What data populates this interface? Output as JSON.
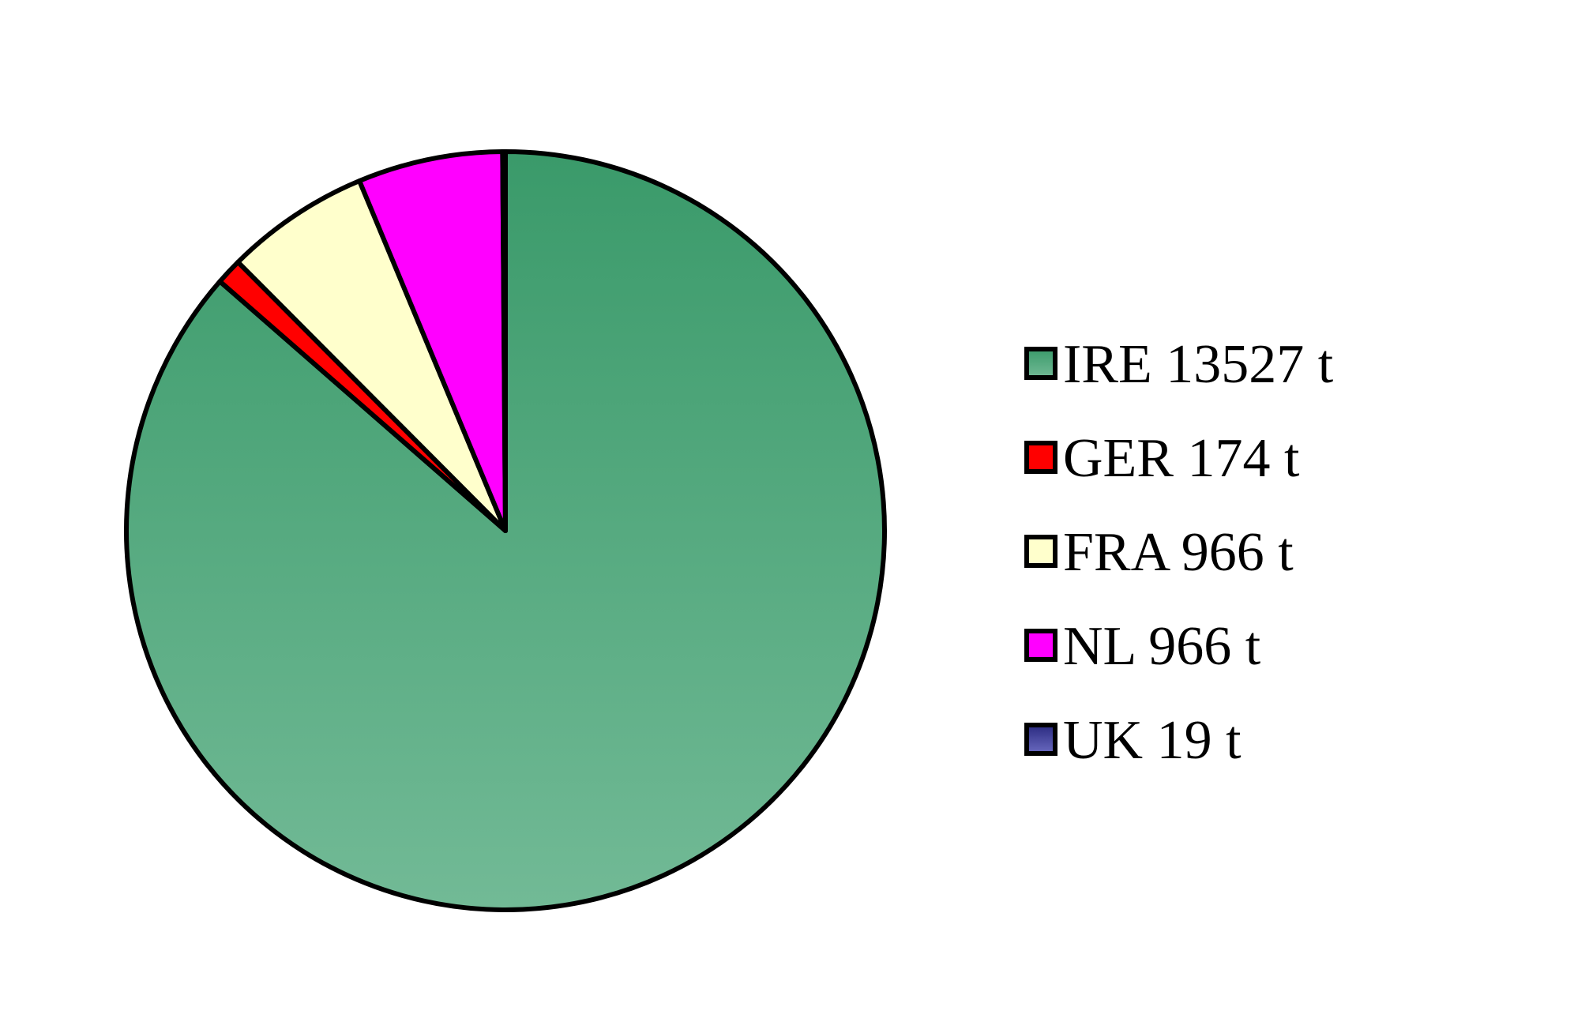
{
  "chart_data": {
    "type": "pie",
    "title": "",
    "legend_position": "right",
    "slices": [
      {
        "label": "IRE 13527 t",
        "value": 13527,
        "color": "#3a9a6a",
        "color_light": "#72ba96"
      },
      {
        "label": "GER 174 t",
        "value": 174,
        "color": "#ff0000",
        "color_light": "#ff0000"
      },
      {
        "label": "FRA 966 t",
        "value": 966,
        "color": "#ffffcc",
        "color_light": "#ffffcc"
      },
      {
        "label": "NL 966 t",
        "value": 966,
        "color": "#ff00ff",
        "color_light": "#ff00ff"
      },
      {
        "label": "UK 19 t",
        "value": 19,
        "color": "#2a2a80",
        "color_light": "#6a6ac0"
      }
    ]
  }
}
